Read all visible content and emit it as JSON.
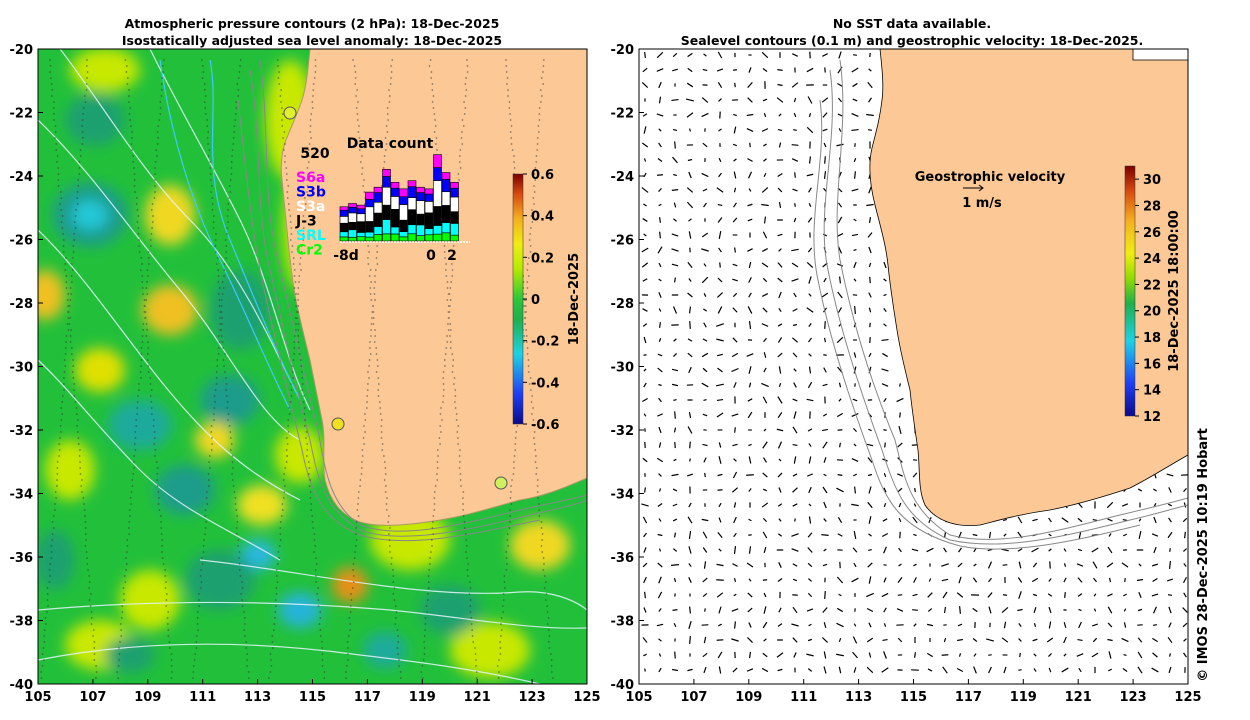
{
  "left_panel": {
    "title_line1": "Atmospheric pressure contours (2 hPa): 18-Dec-2025",
    "title_line2": "Isostatically adjusted sea level anomaly: 18-Dec-2025",
    "x_ticks": [
      "105",
      "107",
      "109",
      "111",
      "113",
      "115",
      "117",
      "119",
      "121",
      "123",
      "125"
    ],
    "y_ticks": [
      "-20",
      "-22",
      "-24",
      "-26",
      "-28",
      "-30",
      "-32",
      "-34",
      "-36",
      "-38",
      "-40"
    ],
    "colorbar": {
      "label": "18-Dec-2025",
      "ticks": [
        "0.6",
        "0.4",
        "0.2",
        "0",
        "-0.2",
        "-0.4",
        "-0.6"
      ],
      "range": [
        -0.6,
        0.6
      ]
    },
    "data_count_inset": {
      "title": "Data count",
      "max_label": "520",
      "x_labels": [
        "-8d",
        "0",
        "2"
      ],
      "satellites": [
        {
          "name": "S6a",
          "color": "#ff00ff"
        },
        {
          "name": "S3b",
          "color": "#0000ff"
        },
        {
          "name": "S3a",
          "color": "#ffffff"
        },
        {
          "name": "J-3",
          "color": "#000000"
        },
        {
          "name": "SRL",
          "color": "#00ffff"
        },
        {
          "name": "Cr2",
          "color": "#00ff00"
        }
      ],
      "bar_totals": [
        210,
        230,
        220,
        300,
        330,
        440,
        360,
        320,
        370,
        330,
        320,
        530,
        420,
        360
      ]
    }
  },
  "right_panel": {
    "title_line1": "No SST data available.",
    "title_line2": "Sealevel contours (0.1 m) and geostrophic velocity: 18-Dec-2025.",
    "x_ticks": [
      "105",
      "107",
      "109",
      "111",
      "113",
      "115",
      "117",
      "119",
      "121",
      "123",
      "125"
    ],
    "y_ticks": [
      "-20",
      "-22",
      "-24",
      "-26",
      "-28",
      "-30",
      "-32",
      "-34",
      "-36",
      "-38",
      "-40"
    ],
    "velocity_legend": {
      "title": "Geostrophic velocity",
      "scale_label": "1 m/s"
    },
    "colorbar": {
      "label": "18-Dec-2025 18:00:00",
      "ticks": [
        "30",
        "28",
        "26",
        "24",
        "22",
        "20",
        "18",
        "16",
        "14",
        "12"
      ],
      "range": [
        12,
        31
      ]
    }
  },
  "credit": "© IMOS 28-Dec-2025 10:19 Hobart",
  "colors": {
    "land": "#fcc896",
    "sea_mid": "#22c03a",
    "sea_high": "#c8f000",
    "sea_low": "#20c0c0"
  }
}
